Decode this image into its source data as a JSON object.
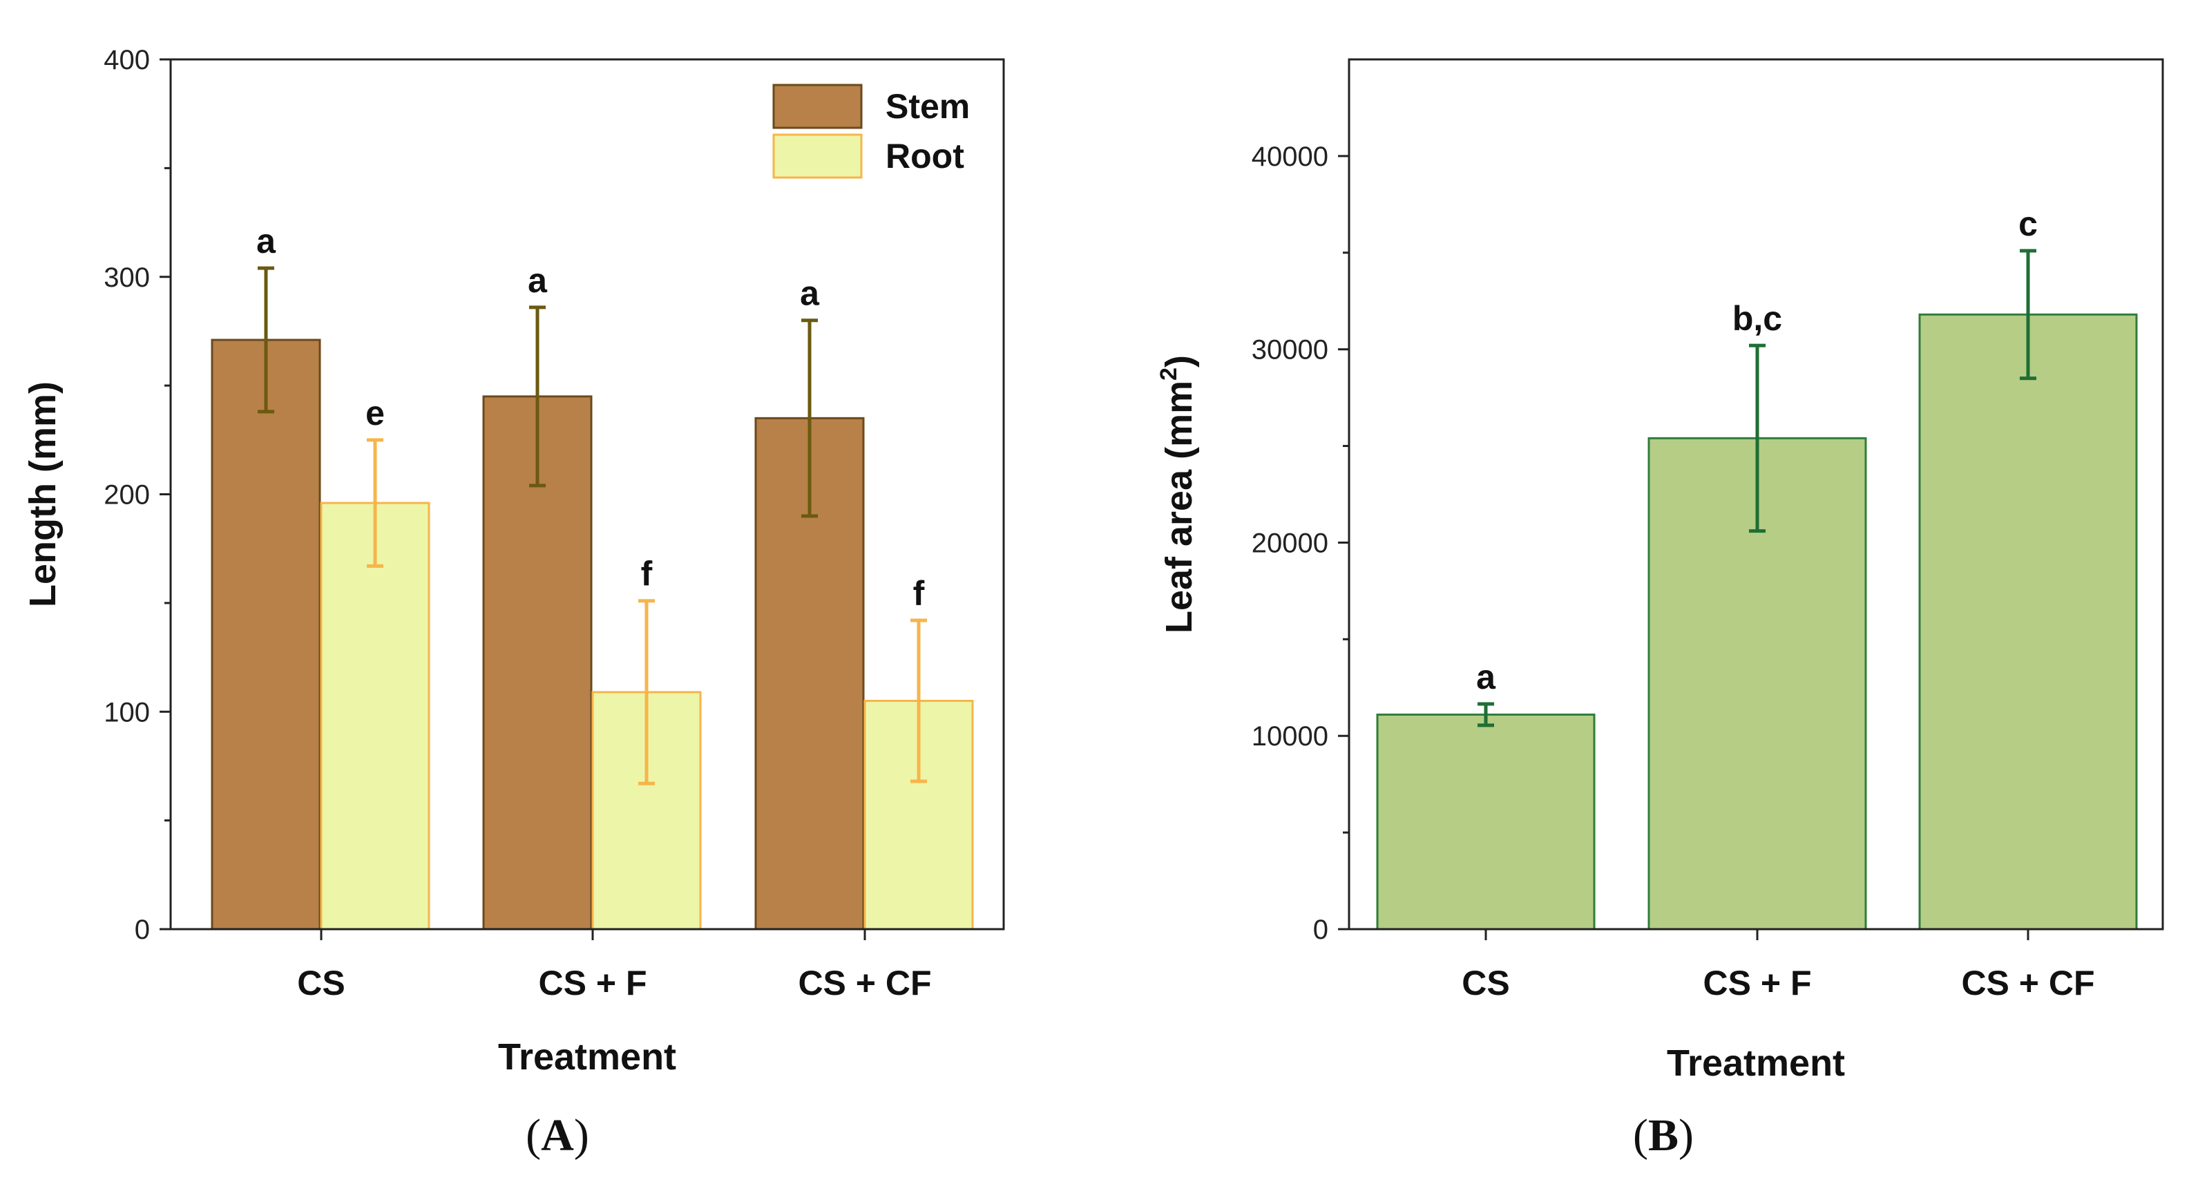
{
  "chart_data": [
    {
      "type": "bar",
      "panel_label": "A",
      "categories": [
        "CS",
        "CS + F",
        "CS + CF"
      ],
      "series": [
        {
          "name": "Stem",
          "values": [
            271,
            245,
            235
          ],
          "errors": [
            33,
            41,
            45
          ],
          "letters": [
            "a",
            "a",
            "a"
          ],
          "color": "#b8814a",
          "edge": "#6b4a1c",
          "error_color": "#6b5a10"
        },
        {
          "name": "Root",
          "values": [
            196,
            109,
            105
          ],
          "errors": [
            29,
            42,
            37
          ],
          "letters": [
            "e",
            "f",
            "f"
          ],
          "color": "#edf5a8",
          "edge": "#f6b54b",
          "error_color": "#f6b54b"
        }
      ],
      "xlabel": "Treatment",
      "ylabel": "Length (mm)",
      "ylim": [
        0,
        400
      ],
      "major_ticks": [
        0,
        100,
        200,
        300,
        400
      ],
      "minor_ticks": [
        50,
        150,
        250,
        350
      ],
      "legend_position": "top-right"
    },
    {
      "type": "bar",
      "panel_label": "B",
      "categories": [
        "CS",
        "CS + F",
        "CS + CF"
      ],
      "series": [
        {
          "name": "Leaf area",
          "values": [
            11100,
            25400,
            31800
          ],
          "errors": [
            550,
            4800,
            3300
          ],
          "letters": [
            "a",
            "b,c",
            "c"
          ],
          "color": "#b5cd85",
          "edge": "#2f7d3c",
          "error_color": "#1f6e34"
        }
      ],
      "xlabel": "Treatment",
      "ylabel": "Leaf area (mm",
      "ylabel_superscript": "2",
      "ylabel_close": ")",
      "ylim": [
        0,
        45000
      ],
      "major_ticks": [
        0,
        10000,
        20000,
        30000,
        40000
      ],
      "minor_ticks": [
        5000,
        15000,
        25000,
        35000
      ]
    }
  ]
}
